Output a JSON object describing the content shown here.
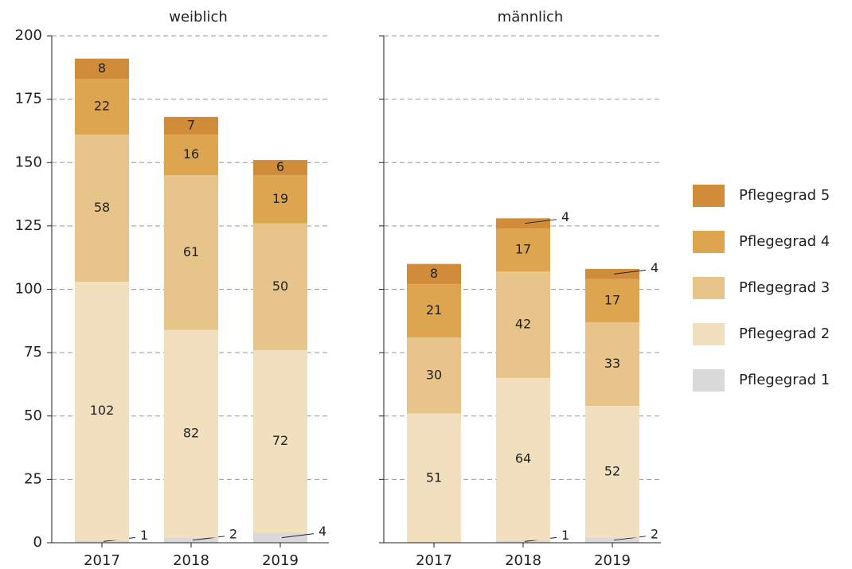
{
  "chart_data": {
    "type": "stacked-bar",
    "ylim": [
      0,
      200
    ],
    "yticks": [
      0,
      25,
      50,
      75,
      100,
      125,
      150,
      175,
      200
    ],
    "grid": true,
    "legend": "right",
    "series": [
      {
        "name": "Pflegegrad 1",
        "color": "#d9d9d9"
      },
      {
        "name": "Pflegegrad 2",
        "color": "#f2dfbd"
      },
      {
        "name": "Pflegegrad 3",
        "color": "#e6c48a"
      },
      {
        "name": "Pflegegrad 4",
        "color": "#dda550"
      },
      {
        "name": "Pflegegrad 5",
        "color": "#d08c38"
      }
    ],
    "panels": [
      {
        "title": "weiblich",
        "categories": [
          "2017",
          "2018",
          "2019"
        ],
        "values": [
          [
            1,
            2,
            4
          ],
          [
            102,
            82,
            72
          ],
          [
            58,
            61,
            50
          ],
          [
            22,
            16,
            19
          ],
          [
            8,
            7,
            6
          ]
        ]
      },
      {
        "title": "männlich",
        "categories": [
          "2017",
          "2018",
          "2019"
        ],
        "values": [
          [
            null,
            1,
            2
          ],
          [
            51,
            64,
            52
          ],
          [
            30,
            42,
            33
          ],
          [
            21,
            17,
            17
          ],
          [
            8,
            4,
            4
          ]
        ]
      }
    ]
  }
}
